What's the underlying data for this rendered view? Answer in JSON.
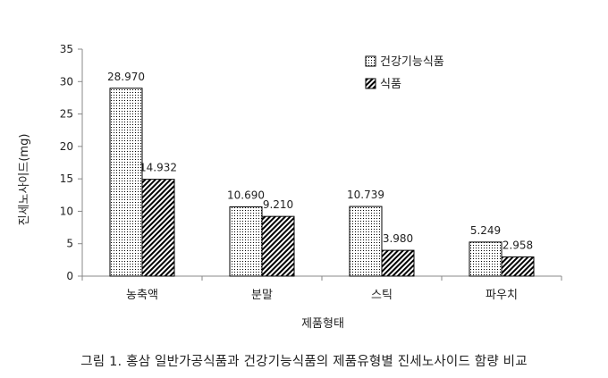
{
  "chart_data": {
    "type": "bar",
    "categories": [
      "농축액",
      "분말",
      "스틱",
      "파우치"
    ],
    "series": [
      {
        "name": "건강기능식품",
        "pattern": "dotted",
        "values": [
          28.97,
          10.69,
          10.739,
          5.249
        ],
        "labels": [
          "28.970",
          "10.690",
          "10.739",
          "5.249"
        ]
      },
      {
        "name": "식품",
        "pattern": "hatched",
        "values": [
          14.932,
          9.21,
          3.98,
          2.958
        ],
        "labels": [
          "14.932",
          "9.210",
          "3.980",
          "2.958"
        ]
      }
    ],
    "xlabel": "제품형태",
    "ylabel": "진세노사이드(mg)",
    "ylim": [
      0,
      35
    ],
    "yticks": [
      0,
      5,
      10,
      15,
      20,
      25,
      30,
      35
    ],
    "grid": false,
    "legend_position": "top-right",
    "colors": {
      "bar_fill": "#ffffff",
      "bar_stroke": "#000000",
      "pattern": "#000000",
      "axis": "#888888"
    }
  },
  "caption": "그림 1. 홍삼 일반가공식품과 건강기능식품의 제품유형별 진세노사이드 함량 비교"
}
